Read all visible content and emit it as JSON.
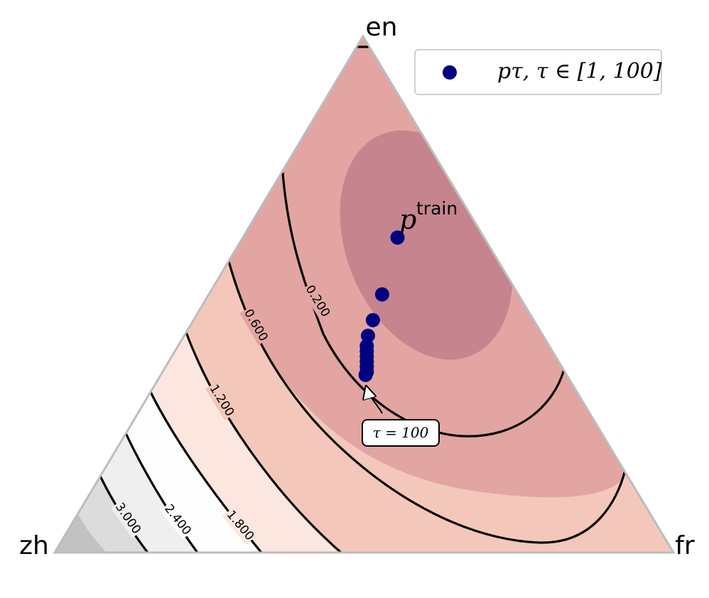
{
  "chart_data": {
    "type": "ternary-contour",
    "vertices": [
      "en",
      "zh",
      "fr"
    ],
    "contour_levels": [
      "0.200",
      "0.600",
      "1.200",
      "1.800",
      "2.400",
      "3.000"
    ],
    "fill_colors": [
      "#c6848f",
      "#e2a5a1",
      "#f3c8ba",
      "#fbe7e0",
      "#fdfdfd",
      "#efefef",
      "#dcdcdc",
      "#c2c2c2"
    ],
    "legend": {
      "marker_color": "#000080",
      "label": "pτ, τ ∈ [1, 100]"
    },
    "points_series": {
      "name": "pτ, τ ∈ [1, 100]",
      "color": "#000080",
      "points": [
        {
          "en": 0.61,
          "zh": 0.14,
          "fr": 0.25
        },
        {
          "en": 0.5,
          "zh": 0.22,
          "fr": 0.28
        },
        {
          "en": 0.45,
          "zh": 0.26,
          "fr": 0.29
        },
        {
          "en": 0.42,
          "zh": 0.283,
          "fr": 0.297
        },
        {
          "en": 0.4,
          "zh": 0.295,
          "fr": 0.305
        },
        {
          "en": 0.39,
          "zh": 0.3,
          "fr": 0.31
        },
        {
          "en": 0.38,
          "zh": 0.305,
          "fr": 0.315
        },
        {
          "en": 0.37,
          "zh": 0.31,
          "fr": 0.32
        },
        {
          "en": 0.36,
          "zh": 0.315,
          "fr": 0.325
        },
        {
          "en": 0.35,
          "zh": 0.32,
          "fr": 0.33
        },
        {
          "en": 0.344,
          "zh": 0.325,
          "fr": 0.331
        }
      ]
    },
    "p_train": {
      "label_main": "p",
      "label_sup": "train"
    },
    "annotation": {
      "text": "τ = 100"
    }
  }
}
